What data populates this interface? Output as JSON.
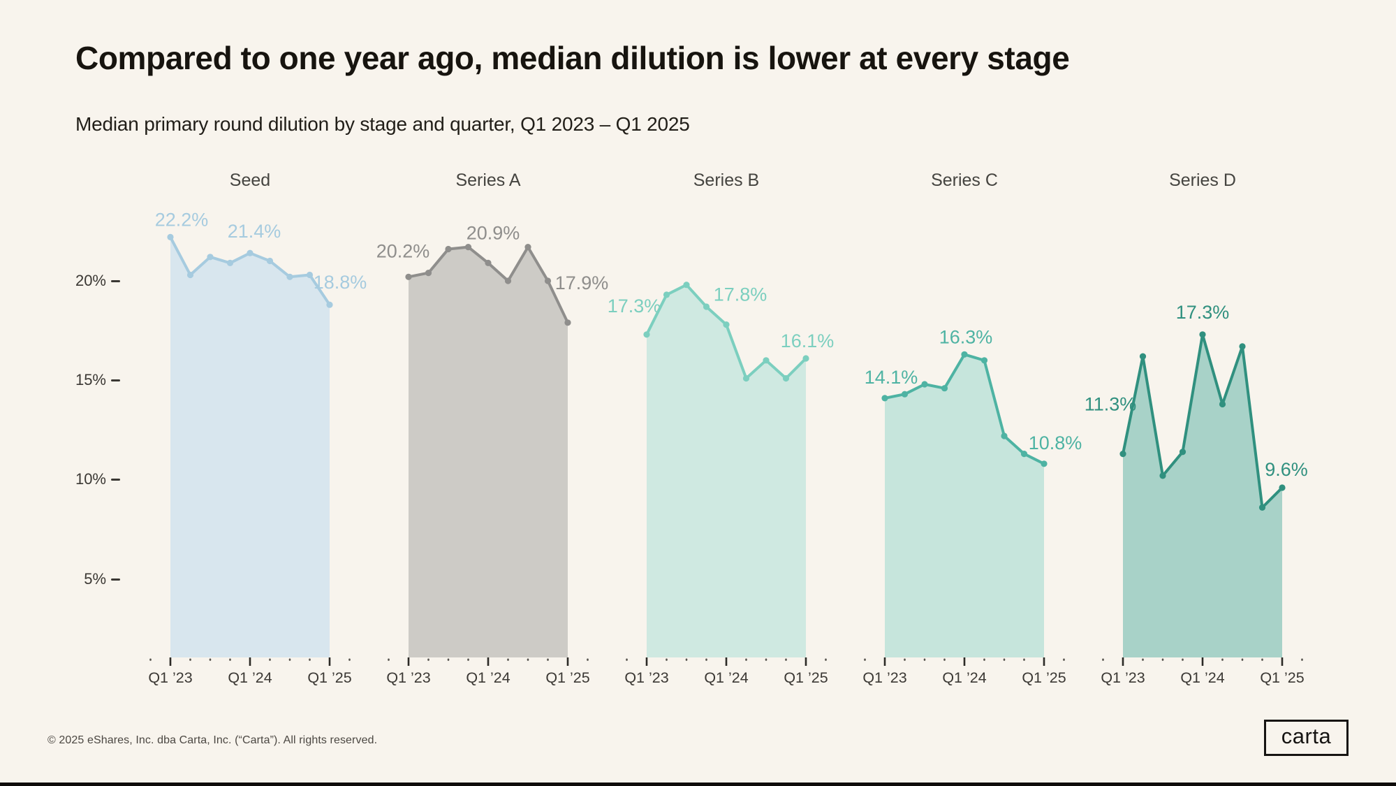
{
  "header": {
    "title": "Compared to one year ago, median dilution is lower at every stage",
    "subtitle": "Median primary round dilution by stage and quarter,  Q1 2023 – Q1 2025"
  },
  "footer": {
    "copyright": "© 2025 eShares, Inc. dba Carta, Inc. (“Carta”). All rights reserved.",
    "logo_text": "carta"
  },
  "chart_data": {
    "type": "area",
    "description": "Small-multiple area/line charts of median primary round dilution (%) per quarter",
    "x": [
      "Q1 '23",
      "Q2 '23",
      "Q3 '23",
      "Q4 '23",
      "Q1 '24",
      "Q2 '24",
      "Q3 '24",
      "Q4 '24",
      "Q1 '25"
    ],
    "x_axis_labels": [
      "Q1 ’23",
      "Q1 ’24",
      "Q1 ’25"
    ],
    "y_axis": {
      "ticks": [
        "20%",
        "15%",
        "10%",
        "5%"
      ],
      "tick_values": [
        20,
        15,
        10,
        5
      ],
      "unit": "%",
      "range_shown": [
        1.1,
        24.0
      ],
      "gridlines": false
    },
    "legend": {
      "shown": false
    },
    "panels": [
      {
        "name": "Seed",
        "line_color": "#a6cbdf",
        "fill_color": "#d8e6ee",
        "values": [
          22.2,
          20.3,
          21.2,
          20.9,
          21.4,
          21.0,
          20.2,
          20.3,
          18.8
        ],
        "point_labels": [
          {
            "index": 0,
            "text": "22.2%"
          },
          {
            "index": 4,
            "text": "21.4%"
          },
          {
            "index": 8,
            "text": "18.8%"
          }
        ]
      },
      {
        "name": "Series A",
        "line_color": "#8f8e8c",
        "fill_color": "#cdcbc6",
        "values": [
          20.2,
          20.4,
          21.6,
          21.7,
          20.9,
          20.0,
          21.7,
          20.0,
          17.9
        ],
        "point_labels": [
          {
            "index": 0,
            "text": "20.2%"
          },
          {
            "index": 4,
            "text": "20.9%"
          },
          {
            "index": 8,
            "text": "17.9%"
          }
        ]
      },
      {
        "name": "Series B",
        "line_color": "#7ccfbf",
        "fill_color": "#cfe9e1",
        "values": [
          17.3,
          19.3,
          19.8,
          18.7,
          17.8,
          15.1,
          16.0,
          15.1,
          16.1
        ],
        "point_labels": [
          {
            "index": 0,
            "text": "17.3%"
          },
          {
            "index": 4,
            "text": "17.8%"
          },
          {
            "index": 8,
            "text": "16.1%"
          }
        ]
      },
      {
        "name": "Series C",
        "line_color": "#4eb3a3",
        "fill_color": "#c6e5dc",
        "values": [
          14.1,
          14.3,
          14.8,
          14.6,
          16.3,
          16.0,
          12.2,
          11.3,
          10.8
        ],
        "point_labels": [
          {
            "index": 0,
            "text": "14.1%"
          },
          {
            "index": 4,
            "text": "16.3%"
          },
          {
            "index": 8,
            "text": "10.8%"
          }
        ]
      },
      {
        "name": "Series D",
        "line_color": "#30907f",
        "fill_color": "#a8d2c8",
        "values": [
          11.3,
          16.2,
          10.2,
          11.4,
          17.3,
          13.8,
          16.7,
          8.6,
          9.6
        ],
        "point_labels": [
          {
            "index": 0,
            "text": "11.3%"
          },
          {
            "index": 4,
            "text": "17.3%"
          },
          {
            "index": 8,
            "text": "9.6%"
          }
        ]
      }
    ]
  }
}
